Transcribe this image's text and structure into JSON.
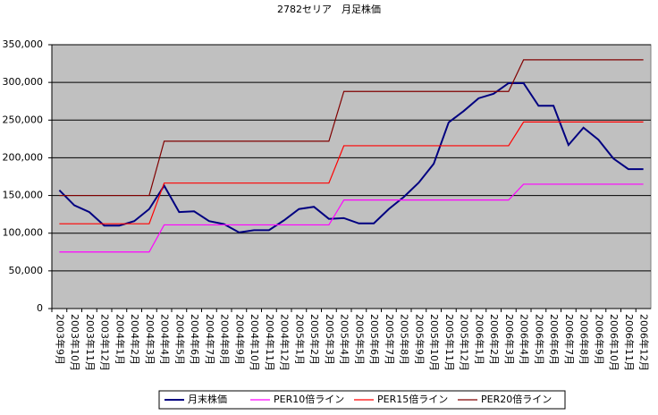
{
  "chart_data": {
    "type": "line",
    "title": "2782セリア　月足株価",
    "categories": [
      "2003年9月",
      "2003年10月",
      "2003年11月",
      "2003年12月",
      "2004年1月",
      "2004年2月",
      "2004年3月",
      "2004年4月",
      "2004年5月",
      "2004年6月",
      "2004年7月",
      "2004年8月",
      "2004年9月",
      "2004年10月",
      "2004年11月",
      "2004年12月",
      "2005年1月",
      "2005年2月",
      "2005年3月",
      "2005年4月",
      "2005年5月",
      "2005年6月",
      "2005年7月",
      "2005年8月",
      "2005年9月",
      "2005年10月",
      "2005年11月",
      "2005年12月",
      "2006年1月",
      "2006年2月",
      "2006年3月",
      "2006年4月",
      "2006年5月",
      "2006年6月",
      "2006年7月",
      "2006年8月",
      "2006年9月",
      "2006年10月",
      "2006年11月",
      "2006年12月"
    ],
    "series": [
      {
        "name": "月末株価",
        "color": "#000080",
        "values": [
          157000,
          137000,
          128000,
          110000,
          110000,
          116000,
          132000,
          163000,
          128000,
          129000,
          116000,
          112000,
          101000,
          104000,
          104000,
          117000,
          132000,
          135000,
          119000,
          120000,
          113000,
          113000,
          132000,
          148000,
          167000,
          192000,
          247000,
          262000,
          279000,
          285000,
          299000,
          299000,
          269000,
          269000,
          217000,
          240000,
          224000,
          199000,
          185000,
          185000
        ]
      },
      {
        "name": "PER10倍ライン",
        "color": "#ff00ff",
        "values": [
          75000,
          75000,
          75000,
          75000,
          75000,
          75000,
          75000,
          111000,
          111000,
          111000,
          111000,
          111000,
          111000,
          111000,
          111000,
          111000,
          111000,
          111000,
          111000,
          144000,
          144000,
          144000,
          144000,
          144000,
          144000,
          144000,
          144000,
          144000,
          144000,
          144000,
          144000,
          165000,
          165000,
          165000,
          165000,
          165000,
          165000,
          165000,
          165000,
          165000
        ]
      },
      {
        "name": "PER15倍ライン",
        "color": "#ff0000",
        "values": [
          112500,
          112500,
          112500,
          112500,
          112500,
          112500,
          112500,
          166500,
          166500,
          166500,
          166500,
          166500,
          166500,
          166500,
          166500,
          166500,
          166500,
          166500,
          166500,
          216000,
          216000,
          216000,
          216000,
          216000,
          216000,
          216000,
          216000,
          216000,
          216000,
          216000,
          216000,
          247500,
          247500,
          247500,
          247500,
          247500,
          247500,
          247500,
          247500,
          247500
        ]
      },
      {
        "name": "PER20倍ライン",
        "color": "#800000",
        "values": [
          150000,
          150000,
          150000,
          150000,
          150000,
          150000,
          150000,
          222000,
          222000,
          222000,
          222000,
          222000,
          222000,
          222000,
          222000,
          222000,
          222000,
          222000,
          222000,
          288000,
          288000,
          288000,
          288000,
          288000,
          288000,
          288000,
          288000,
          288000,
          288000,
          288000,
          288000,
          330000,
          330000,
          330000,
          330000,
          330000,
          330000,
          330000,
          330000,
          330000
        ]
      }
    ],
    "ylim": [
      0,
      350000
    ],
    "yticks": [
      0,
      {
        "value": 50000,
        "label": "50,000"
      },
      {
        "value": 100000,
        "label": "100,000"
      },
      {
        "value": 150000,
        "label": "150,000"
      },
      {
        "value": 200000,
        "label": "200,000"
      },
      {
        "value": 250000,
        "label": "250,000"
      },
      {
        "value": 300000,
        "label": "300,000"
      },
      {
        "value": 350000,
        "label": "350,000"
      }
    ],
    "grid": true,
    "legend": "bottom",
    "plot_background": "#c0c0c0"
  }
}
